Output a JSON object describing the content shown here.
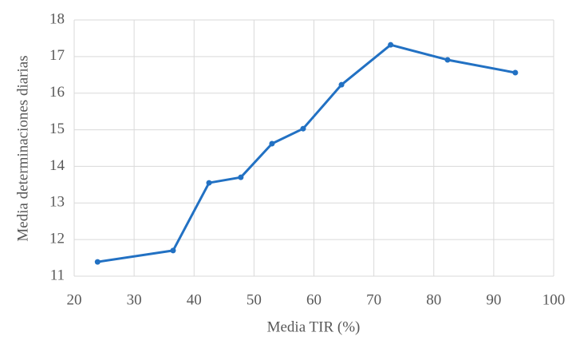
{
  "chart_data": {
    "type": "line",
    "x_label": "Media TIR (%)",
    "y_label": "Media determinaciones diarias",
    "series": [
      {
        "name": "Media determinaciones diarias",
        "color": "#2271c3",
        "x": [
          23.9,
          36.5,
          42.5,
          47.8,
          53.0,
          58.2,
          64.6,
          72.8,
          82.3,
          93.6
        ],
        "values": [
          11.39,
          11.7,
          13.55,
          13.7,
          14.62,
          15.03,
          16.23,
          17.32,
          16.91,
          16.56
        ]
      }
    ],
    "xlim": [
      20,
      100
    ],
    "xticks": [
      20,
      30,
      40,
      50,
      60,
      70,
      80,
      90,
      100
    ],
    "ylim": [
      11,
      18
    ],
    "yticks": [
      11,
      12,
      13,
      14,
      15,
      16,
      17,
      18
    ],
    "grid": true
  }
}
